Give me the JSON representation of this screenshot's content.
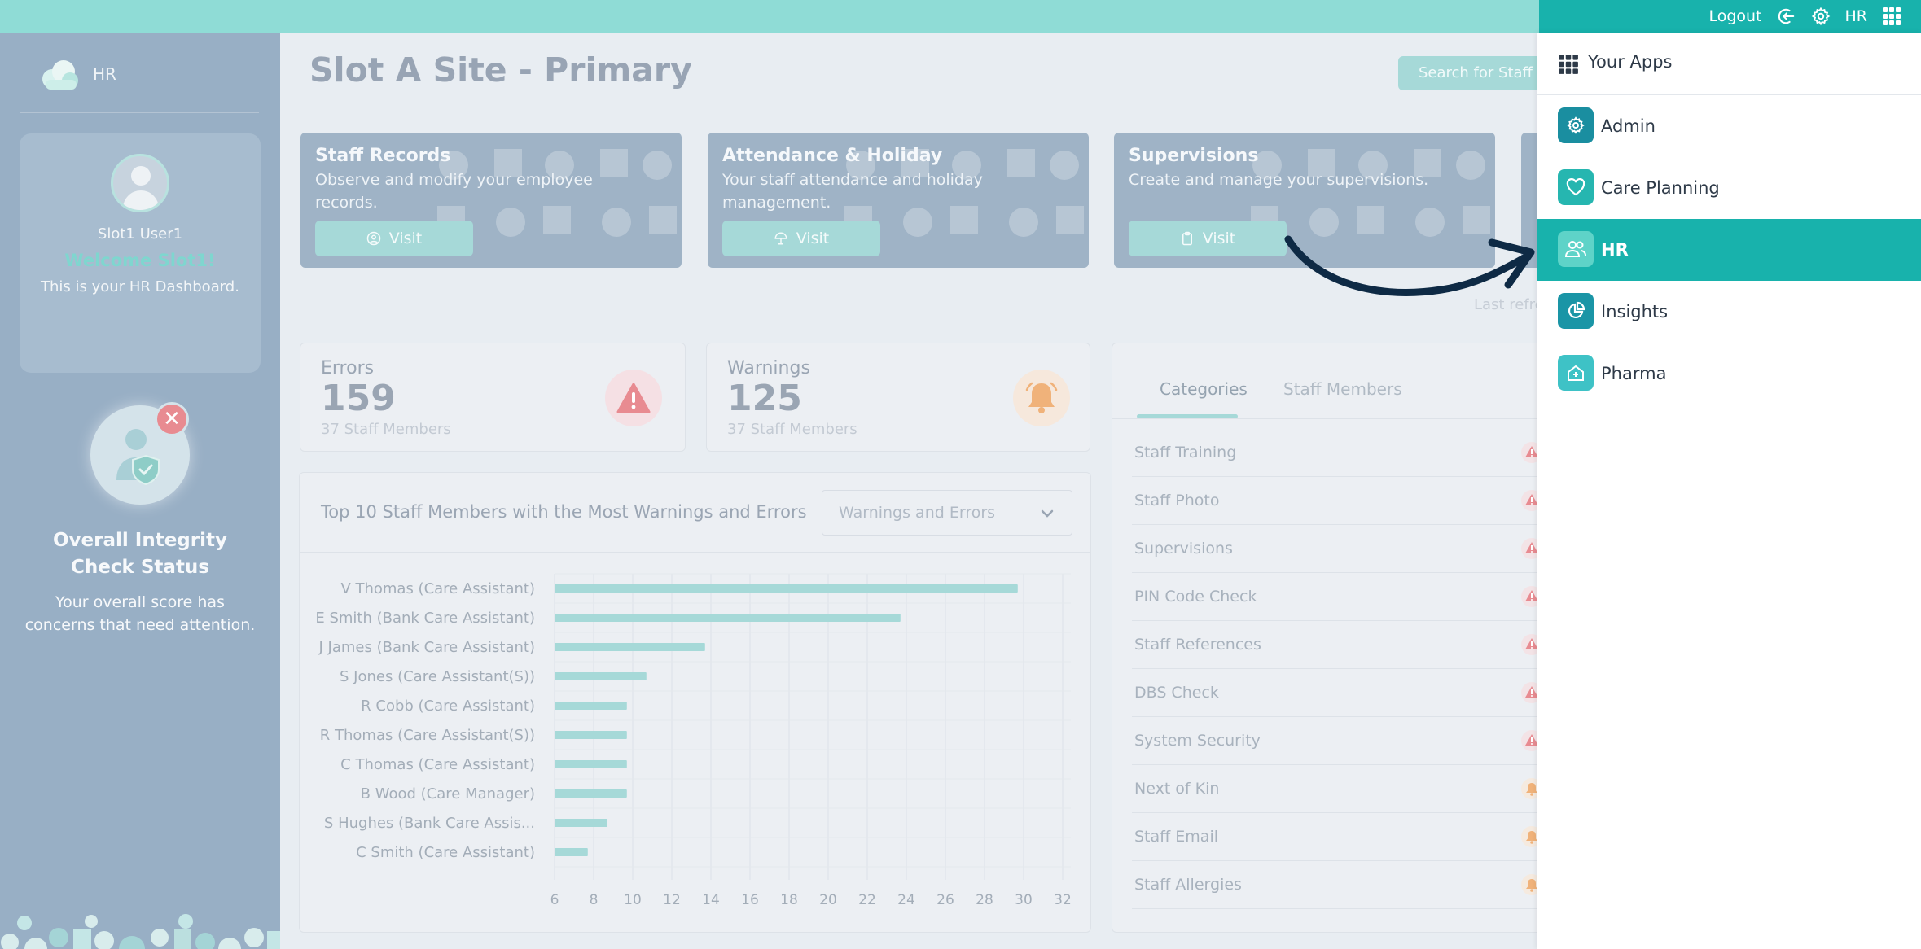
{
  "topbar": {
    "logout_label": "Logout",
    "user_initials": "HR"
  },
  "sidebar": {
    "app_name": "HR",
    "user_name": "Slot1 User1",
    "welcome": "Welcome Slot1!",
    "dashboard_text": "This is your HR Dashboard.",
    "integrity_title_line1": "Overall Integrity",
    "integrity_title_line2": "Check Status",
    "integrity_text_line1": "Your overall score has",
    "integrity_text_line2": "concerns that need attention."
  },
  "header": {
    "title": "Slot A Site - Primary",
    "search_label": "Search for Staff"
  },
  "tiles": [
    {
      "title": "Staff Records",
      "desc": "Observe and modify your employee records.",
      "button": "Visit"
    },
    {
      "title": "Attendance & Holiday",
      "desc": "Your staff attendance and holiday management.",
      "button": "Visit"
    },
    {
      "title": "Supervisions",
      "desc": "Create and manage your supervisions.",
      "button": "Visit"
    }
  ],
  "last_refresh": "Last refre",
  "stats": {
    "errors": {
      "label": "Errors",
      "value": "159",
      "sub": "37 Staff Members",
      "color": "#e88b91"
    },
    "warnings": {
      "label": "Warnings",
      "value": "125",
      "sub": "37 Staff Members",
      "color": "#f0b27a"
    }
  },
  "chart": {
    "title": "Top 10 Staff Members with the Most Warnings and Errors",
    "select_value": "Warnings and Errors"
  },
  "chart_data": {
    "type": "bar",
    "orientation": "horizontal",
    "title": "Top 10 Staff Members with the Most Warnings and Errors",
    "categories": [
      "V Thomas (Care Assistant)",
      "E Smith (Bank Care Assistant)",
      "J James (Bank Care Assistant)",
      "S Jones (Care Assistant(S))",
      "R Cobb (Care Assistant)",
      "R Thomas (Care Assistant(S))",
      "C Thomas (Care Assistant)",
      "B Wood (Care Manager)",
      "S Hughes (Bank Care Assis...",
      "C Smith (Care Assistant)"
    ],
    "values": [
      29.7,
      23.7,
      13.7,
      10.7,
      9.7,
      9.7,
      9.7,
      9.7,
      8.7,
      7.7
    ],
    "xticks": [
      "6",
      "8",
      "10",
      "12",
      "14",
      "16",
      "18",
      "20",
      "22",
      "24",
      "26",
      "28",
      "30",
      "32"
    ],
    "xlim": [
      6,
      32
    ],
    "grid": true,
    "bar_color": "#a6d9d8"
  },
  "categories_panel": {
    "tab_active": "Categories",
    "tab_inactive": "Staff Members",
    "rows": [
      {
        "label": "Staff Training",
        "severity": "error"
      },
      {
        "label": "Staff Photo",
        "severity": "error"
      },
      {
        "label": "Supervisions",
        "severity": "error"
      },
      {
        "label": "PIN Code Check",
        "severity": "error"
      },
      {
        "label": "Staff References",
        "severity": "error"
      },
      {
        "label": "DBS Check",
        "severity": "error"
      },
      {
        "label": "System Security",
        "severity": "error"
      },
      {
        "label": "Next of Kin",
        "severity": "warning"
      },
      {
        "label": "Staff Email",
        "severity": "warning"
      },
      {
        "label": "Staff Allergies",
        "severity": "warning"
      }
    ]
  },
  "apps": {
    "header": "Your Apps",
    "items": [
      {
        "label": "Admin",
        "icon": "gear-icon",
        "color": "#1a8ea0",
        "active": false
      },
      {
        "label": "Care Planning",
        "icon": "heart-icon",
        "color": "#26b6b0",
        "active": false
      },
      {
        "label": "HR",
        "icon": "people-icon",
        "color": "#5ed3c8",
        "active": true
      },
      {
        "label": "Insights",
        "icon": "chart-pie-icon",
        "color": "#1a95a6",
        "active": false
      },
      {
        "label": "Pharma",
        "icon": "pharmacy-icon",
        "color": "#3ec2c6",
        "active": false
      }
    ]
  }
}
